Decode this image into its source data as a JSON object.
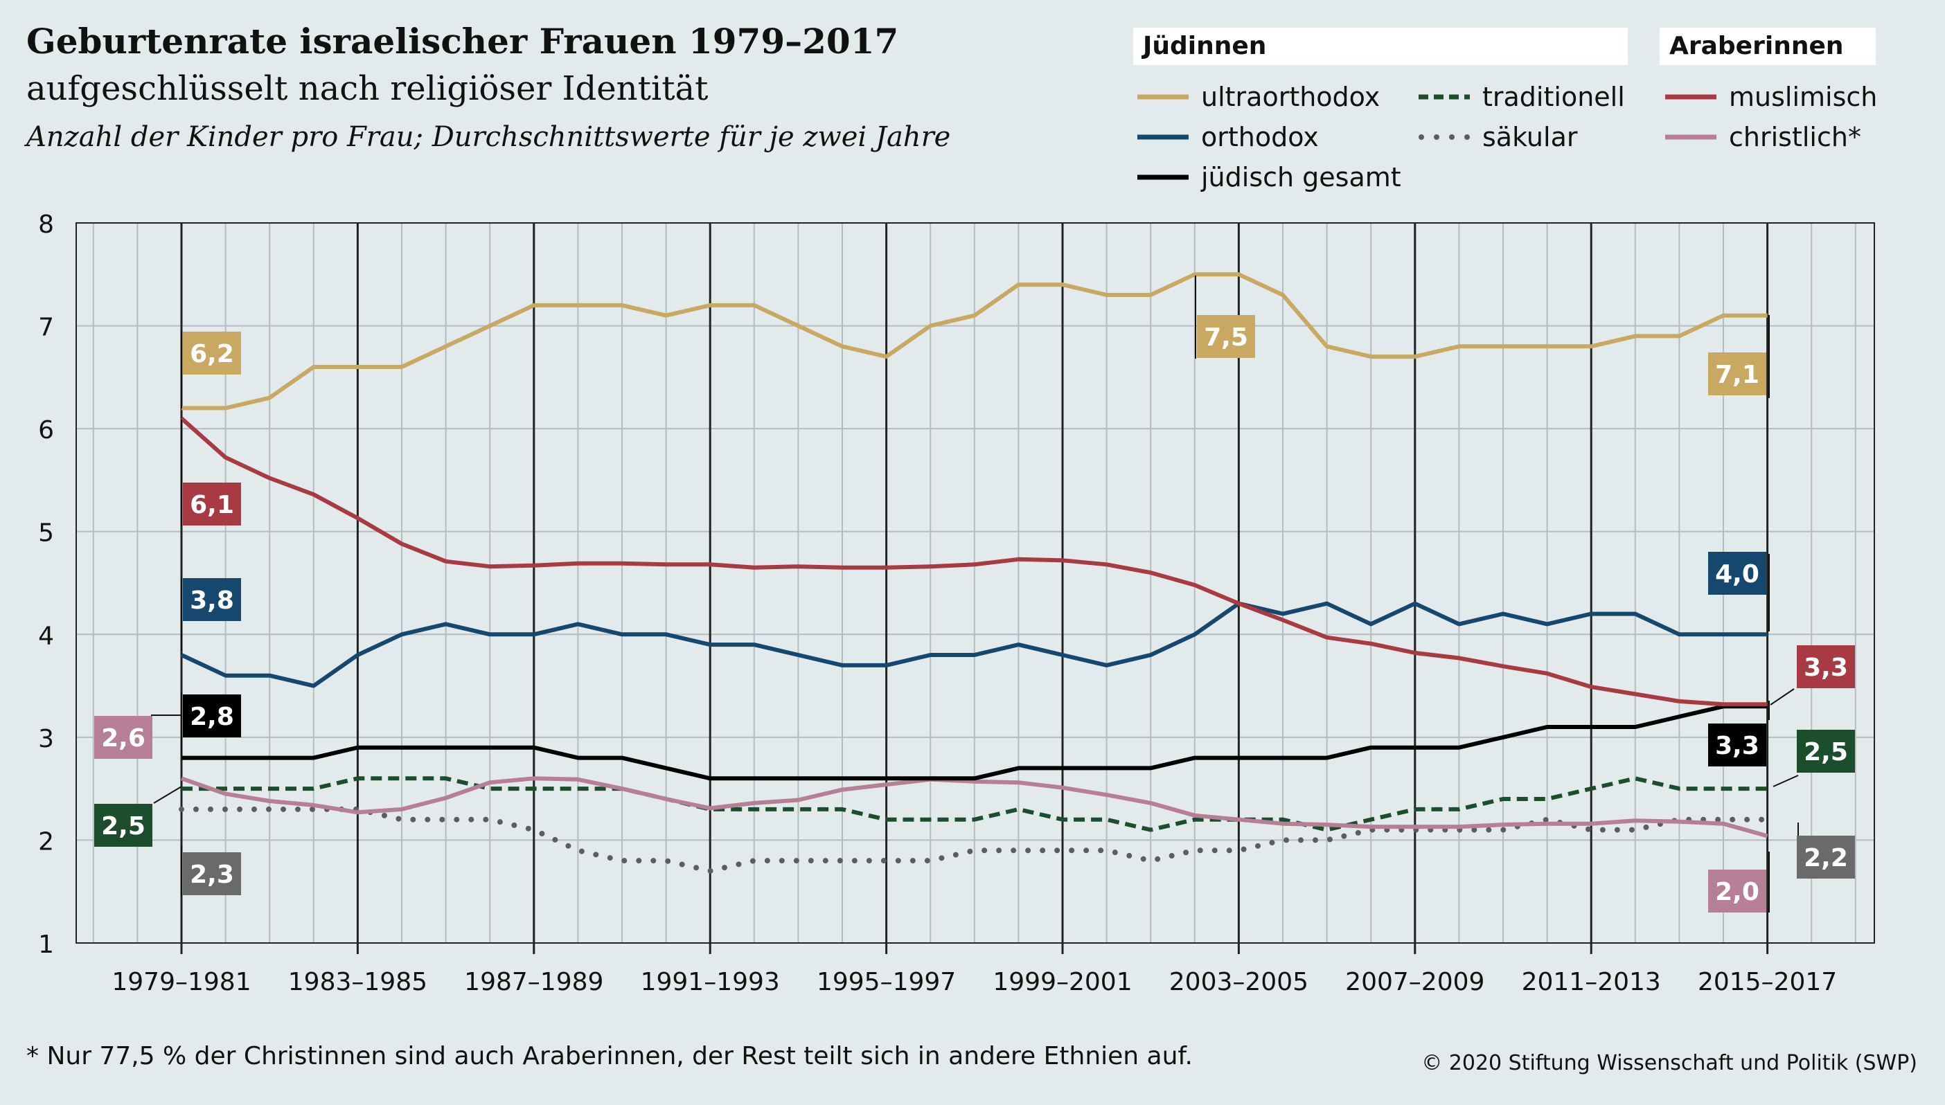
{
  "header": {
    "title": "Geburtenrate israelischer Frauen 1979–2017",
    "subtitle": "aufgeschlüsselt nach religiöser Identität",
    "note": "Anzahl der Kinder pro Frau; Durchschnittswerte für je zwei Jahre"
  },
  "legend": {
    "group_jewish": "Jüdinnen",
    "group_arab": "Araberinnen",
    "items": {
      "ultraorthodox": "ultraorthodox",
      "orthodox": "orthodox",
      "gesamt": "jüdisch gesamt",
      "traditionell": "traditionell",
      "saekular": "säkular",
      "muslimisch": "muslimisch",
      "christlich": "christlich*"
    }
  },
  "footer": {
    "footnote": "* Nur 77,5 % der Christinnen sind auch Araberinnen, der Rest teilt sich in andere Ethnien auf.",
    "copyright": "© 2020 Stiftung Wissenschaft und Politik (SWP)"
  },
  "chart_data": {
    "type": "line",
    "ylim": [
      1,
      8
    ],
    "yticks": [
      1,
      2,
      3,
      4,
      5,
      6,
      7,
      8
    ],
    "xtick_labels": [
      "1979–1981",
      "1983–1985",
      "1987–1989",
      "1991–1993",
      "1995–1997",
      "1999–2001",
      "2003–2005",
      "2007–2009",
      "2011–2013",
      "2015–2017"
    ],
    "grid": true,
    "series": [
      {
        "key": "ultraorthodox",
        "name": "ultraorthodox",
        "color": "#c9a962",
        "style": "solid",
        "values": [
          6.2,
          6.2,
          6.3,
          6.6,
          6.6,
          6.6,
          6.8,
          7.0,
          7.2,
          7.2,
          7.2,
          7.1,
          7.2,
          7.2,
          7.0,
          6.8,
          6.7,
          7.0,
          7.1,
          7.4,
          7.4,
          7.3,
          7.3,
          7.5,
          7.5,
          7.3,
          6.8,
          6.7,
          6.7,
          6.8,
          6.8,
          6.8,
          6.8,
          6.9,
          6.9,
          7.1,
          7.1
        ]
      },
      {
        "key": "muslimisch",
        "name": "muslimisch",
        "color": "#a83a43",
        "style": "solid",
        "values": [
          6.1,
          5.72,
          5.52,
          5.36,
          5.13,
          4.88,
          4.71,
          4.66,
          4.67,
          4.69,
          4.69,
          4.68,
          4.68,
          4.65,
          4.66,
          4.65,
          4.65,
          4.66,
          4.68,
          4.73,
          4.72,
          4.68,
          4.6,
          4.48,
          4.3,
          4.14,
          3.97,
          3.91,
          3.82,
          3.77,
          3.69,
          3.62,
          3.49,
          3.42,
          3.35,
          3.32,
          3.32
        ]
      },
      {
        "key": "orthodox",
        "name": "orthodox",
        "color": "#16476e",
        "style": "solid",
        "values": [
          3.8,
          3.6,
          3.6,
          3.5,
          3.8,
          4.0,
          4.1,
          4.0,
          4.0,
          4.1,
          4.0,
          4.0,
          3.9,
          3.9,
          3.8,
          3.7,
          3.7,
          3.8,
          3.8,
          3.9,
          3.8,
          3.7,
          3.8,
          4.0,
          4.3,
          4.2,
          4.3,
          4.1,
          4.3,
          4.1,
          4.2,
          4.1,
          4.2,
          4.2,
          4.0,
          4.0,
          4.0
        ]
      },
      {
        "key": "gesamt",
        "name": "jüdisch gesamt",
        "color": "#000000",
        "style": "solid",
        "values": [
          2.8,
          2.8,
          2.8,
          2.8,
          2.9,
          2.9,
          2.9,
          2.9,
          2.9,
          2.8,
          2.8,
          2.7,
          2.6,
          2.6,
          2.6,
          2.6,
          2.6,
          2.6,
          2.6,
          2.7,
          2.7,
          2.7,
          2.7,
          2.8,
          2.8,
          2.8,
          2.8,
          2.9,
          2.9,
          2.9,
          3.0,
          3.1,
          3.1,
          3.1,
          3.2,
          3.3,
          3.3
        ]
      },
      {
        "key": "christlich",
        "name": "christlich*",
        "color": "#b67f96",
        "style": "solid",
        "values": [
          2.6,
          2.45,
          2.38,
          2.34,
          2.27,
          2.3,
          2.41,
          2.56,
          2.6,
          2.59,
          2.5,
          2.4,
          2.31,
          2.36,
          2.39,
          2.49,
          2.54,
          2.59,
          2.57,
          2.56,
          2.51,
          2.44,
          2.36,
          2.24,
          2.2,
          2.16,
          2.15,
          2.13,
          2.13,
          2.13,
          2.15,
          2.16,
          2.16,
          2.19,
          2.18,
          2.16,
          2.04
        ]
      },
      {
        "key": "traditionell",
        "name": "traditionell",
        "color": "#1c4e2e",
        "style": "dashed",
        "values": [
          2.5,
          2.5,
          2.5,
          2.5,
          2.6,
          2.6,
          2.6,
          2.5,
          2.5,
          2.5,
          2.5,
          2.4,
          2.3,
          2.3,
          2.3,
          2.3,
          2.2,
          2.2,
          2.2,
          2.3,
          2.2,
          2.2,
          2.1,
          2.2,
          2.2,
          2.2,
          2.1,
          2.2,
          2.3,
          2.3,
          2.4,
          2.4,
          2.5,
          2.6,
          2.5,
          2.5,
          2.5
        ]
      },
      {
        "key": "saekular",
        "name": "säkular",
        "color": "#5d5d5d",
        "style": "dotted",
        "values": [
          2.3,
          2.3,
          2.3,
          2.3,
          2.3,
          2.2,
          2.2,
          2.2,
          2.1,
          1.9,
          1.8,
          1.8,
          1.7,
          1.8,
          1.8,
          1.8,
          1.8,
          1.8,
          1.9,
          1.9,
          1.9,
          1.9,
          1.8,
          1.9,
          1.9,
          2.0,
          2.0,
          2.1,
          2.1,
          2.1,
          2.1,
          2.2,
          2.1,
          2.1,
          2.2,
          2.2,
          2.2
        ]
      }
    ],
    "annotations": [
      {
        "text": "6,2",
        "series": "ultraorthodox",
        "color": "#c9a962"
      },
      {
        "text": "7,5",
        "series": "ultraorthodox",
        "color": "#c9a962"
      },
      {
        "text": "7,1",
        "series": "ultraorthodox",
        "color": "#c9a962"
      },
      {
        "text": "6,1",
        "series": "muslimisch",
        "color": "#a83a43"
      },
      {
        "text": "3,3",
        "series": "muslimisch",
        "color": "#a83a43"
      },
      {
        "text": "3,8",
        "series": "orthodox",
        "color": "#16476e"
      },
      {
        "text": "4,0",
        "series": "orthodox",
        "color": "#16476e"
      },
      {
        "text": "2,8",
        "series": "gesamt",
        "color": "#000000"
      },
      {
        "text": "3,3",
        "series": "gesamt",
        "color": "#000000"
      },
      {
        "text": "2,6",
        "series": "christlich",
        "color": "#b67f96"
      },
      {
        "text": "2,0",
        "series": "christlich",
        "color": "#b67f96"
      },
      {
        "text": "2,5",
        "series": "traditionell",
        "color": "#1c4e2e"
      },
      {
        "text": "2,5",
        "series": "traditionell",
        "color": "#1c4e2e"
      },
      {
        "text": "2,3",
        "series": "saekular",
        "color": "#6a6a6a"
      },
      {
        "text": "2,2",
        "series": "saekular",
        "color": "#6a6a6a"
      }
    ]
  }
}
